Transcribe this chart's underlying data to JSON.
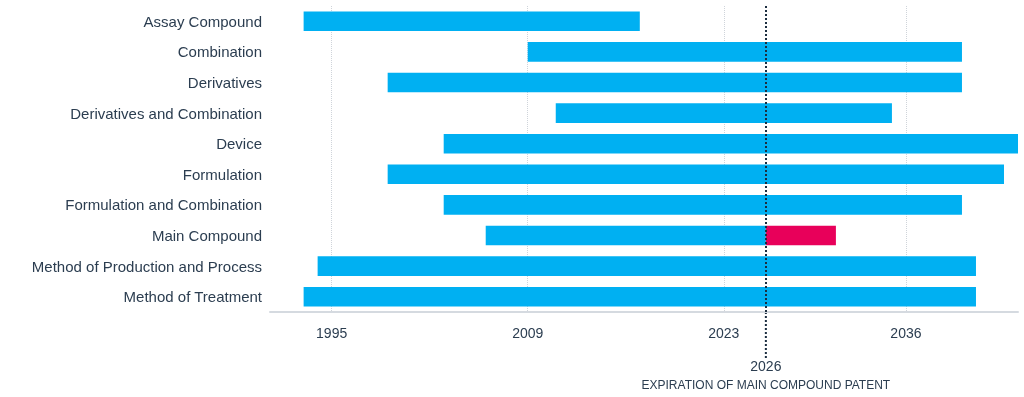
{
  "chart_data": {
    "type": "bar",
    "orientation": "horizontal",
    "categories": [
      "Assay Compound",
      "Combination",
      "Derivatives",
      "Derivatives and Combination",
      "Device",
      "Formulation",
      "Formulation and Combination",
      "Main Compound",
      "Method of Production and Process",
      "Method of Treatment"
    ],
    "series": [
      {
        "color": "#00b0f2",
        "base": [
          1993,
          2009,
          1999,
          2011,
          2003,
          1999,
          2003,
          2006,
          1994,
          1993
        ],
        "values": [
          24,
          31,
          41,
          24,
          41,
          44,
          37,
          20,
          47,
          48
        ]
      },
      {
        "color": "#e8005a",
        "base": [
          null,
          null,
          null,
          null,
          null,
          null,
          null,
          2026,
          null,
          null
        ],
        "values": [
          null,
          null,
          null,
          null,
          null,
          null,
          null,
          5,
          null,
          null
        ]
      }
    ],
    "xlim": [
      1990.6,
      2044
    ],
    "xticks": [
      1995,
      2009,
      2023,
      2036
    ],
    "grid": "x",
    "annotations": [
      "EXPIRATION OF MAIN COMPOUND PATENT"
    ],
    "ref_lines": [
      {
        "axis": "x",
        "value": 2026,
        "label": "2026",
        "color": "#1c2e40",
        "line_style": "dotted"
      }
    ]
  }
}
